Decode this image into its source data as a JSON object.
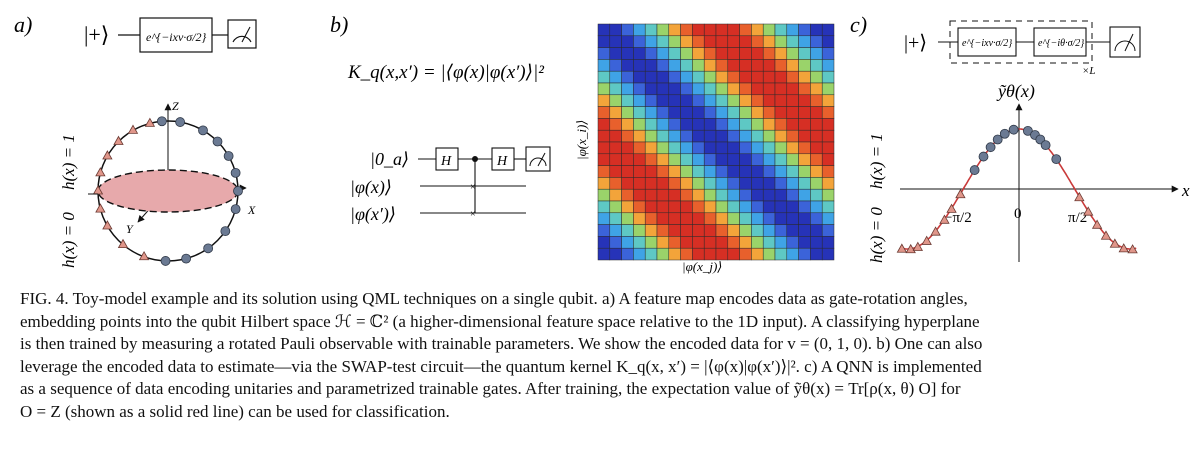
{
  "panels": {
    "a": {
      "label": "a)",
      "circuit": {
        "state": "|+⟩",
        "gate": "e^{−ixv·σ/2}",
        "meter": "measurement-meter"
      },
      "sphere": {
        "axis_z": "Z",
        "axis_x": "X",
        "axis_y": "Y",
        "label_h1": "h(x) = 1",
        "label_h0": "h(x) = 0"
      }
    },
    "b": {
      "label": "b)",
      "kernel_formula": "K_q(x,x′) = |⟨φ(x)|φ(x′)⟩|²",
      "swap_circuit": {
        "ancilla": "|0_a⟩",
        "state1": "|φ(x)⟩",
        "state2": "|φ(x′)⟩",
        "gate": "H"
      },
      "heatmap": {
        "ylabel": "|φ(x_i)⟩",
        "xlabel": "|φ(x_j)⟩"
      }
    },
    "c": {
      "label": "c)",
      "circuit": {
        "state": "|+⟩",
        "gate1": "e^{−ixv·σ/2}",
        "gate2": "e^{−iθ·σ/2}",
        "repeat": "×L"
      },
      "plot": {
        "title": "ỹθ(x)",
        "xlabel": "x",
        "label_h1": "h(x) = 1",
        "label_h0": "h(x) = 0",
        "ticks": [
          "−π/2",
          "0",
          "π/2"
        ]
      }
    }
  },
  "chart_data": [
    {
      "type": "heatmap",
      "rows": 20,
      "cols": 20,
      "values_note": "",
      "colormap": [
        "#2633b8",
        "#3b63d9",
        "#3fa3e6",
        "#5ec8c4",
        "#9ad36a",
        "#e3d845",
        "#f3a43a",
        "#e8602c",
        "#d62f24"
      ],
      "ylabel": "|φ(x_i)⟩",
      "xlabel": "|φ(x_j)⟩"
    },
    {
      "type": "line",
      "x_domain": [
        -3.4,
        3.4
      ],
      "y_domain": [
        -1.0,
        1.0
      ],
      "curve": "cos",
      "points_h1": [
        -1.25,
        -1.0,
        -0.8,
        -0.6,
        -0.4,
        -0.15,
        0.25,
        0.45,
        0.6,
        0.75,
        1.05
      ],
      "points_h0": [
        -3.3,
        -3.05,
        -2.85,
        -2.6,
        -2.35,
        -2.1,
        -1.9,
        -1.65,
        1.7,
        1.95,
        2.2,
        2.45,
        2.7,
        2.95,
        3.2
      ]
    }
  ],
  "caption": {
    "lines": [
      "FIG. 4. Toy-model example and its solution using QML techniques on a single qubit. a) A feature map encodes data as gate-rotation angles,",
      "embedding points into the qubit Hilbert space ℋ = ℂ² (a higher-dimensional feature space relative to the 1D input). A classifying hyperplane",
      "is then trained by measuring a rotated Pauli observable with trainable parameters. We show the encoded data for v = (0, 1, 0). b) One can also",
      "leverage the encoded data to estimate—via the SWAP-test circuit—the quantum kernel K_q(x, x′) = |⟨φ(x)|φ(x′)⟩|². c) A QNN is implemented",
      "as a sequence of data encoding unitaries and parametrized trainable gates. After training, the expectation value of ỹθ(x) = Tr[ρ(x, θ) O] for",
      "O = Z (shown as a solid red line) can be used for classification."
    ]
  },
  "colors": {
    "triangle": "#e0968a",
    "circle": "#6b7a93",
    "curve": "#c93a3a",
    "disk": "#e7a9ab"
  }
}
